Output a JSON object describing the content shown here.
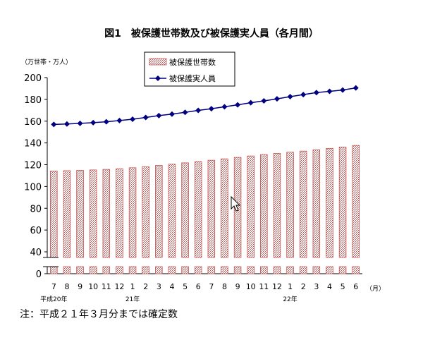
{
  "chart_data": {
    "type": "bar",
    "title": "図1　被保護世帯数及び被保護実人員（各月間）",
    "ylabel": "（万世帯・万人）",
    "ylim": [
      0,
      200
    ],
    "yaxis_break": [
      0,
      40
    ],
    "yticks": [
      "200",
      "180",
      "160",
      "140",
      "120",
      "100",
      "80",
      "60",
      "40",
      "0"
    ],
    "categories": [
      "7",
      "8",
      "9",
      "10",
      "11",
      "12",
      "1",
      "2",
      "3",
      "4",
      "5",
      "6",
      "7",
      "8",
      "9",
      "10",
      "11",
      "12",
      "1",
      "2",
      "3",
      "4",
      "5",
      "6"
    ],
    "x_unit": "（月）",
    "year_labels": [
      {
        "index": 0,
        "label": "平成20年"
      },
      {
        "index": 6,
        "label": "21年"
      },
      {
        "index": 18,
        "label": "22年"
      }
    ],
    "series": [
      {
        "name": "被保護世帯数",
        "kind": "bar",
        "color": "#c0504d",
        "values": [
          114.2,
          114.5,
          114.8,
          115.2,
          115.7,
          116.3,
          117.2,
          118.2,
          119.3,
          120.5,
          121.7,
          122.9,
          124.1,
          125.4,
          126.7,
          128.0,
          129.3,
          130.4,
          131.5,
          132.5,
          133.7,
          135.0,
          136.2,
          137.7
        ]
      },
      {
        "name": "被保護実人員",
        "kind": "line",
        "color": "#000080",
        "values": [
          157.0,
          157.4,
          158.0,
          158.6,
          159.4,
          160.6,
          161.8,
          163.4,
          165.1,
          166.5,
          168.1,
          169.9,
          171.4,
          173.2,
          175.0,
          176.9,
          178.6,
          180.5,
          182.5,
          184.4,
          186.2,
          187.4,
          188.6,
          190.5
        ]
      }
    ],
    "note": "注：平成２１年３月分までは確定数"
  }
}
